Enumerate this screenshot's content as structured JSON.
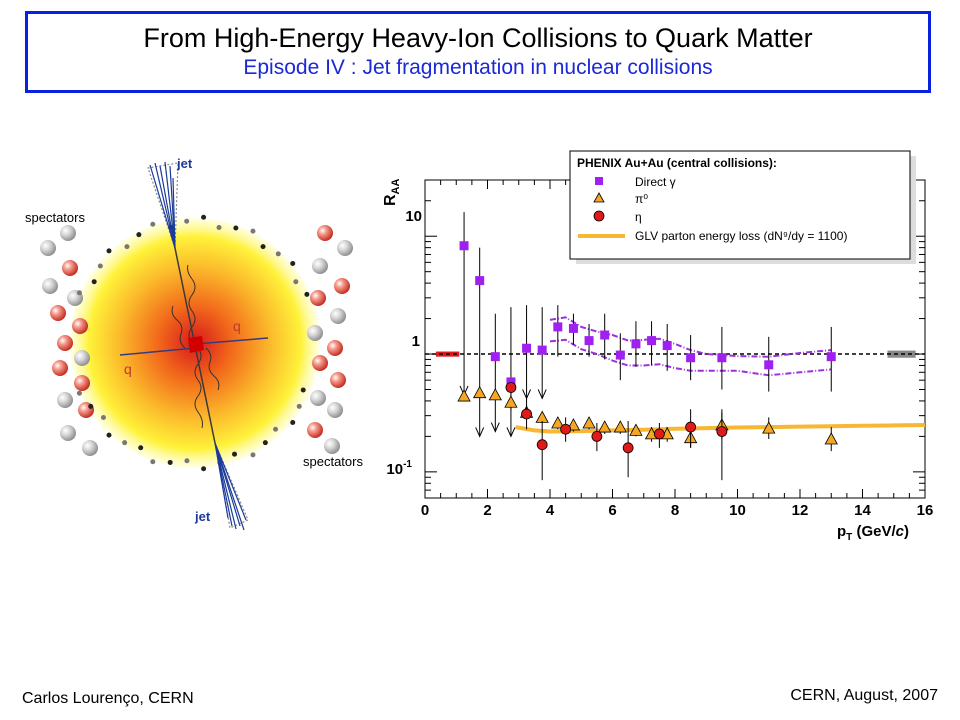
{
  "header": {
    "title": "From High-Energy Heavy-Ion Collisions to Quark Matter",
    "subtitle": "Episode IV : Jet fragmentation in nuclear collisions"
  },
  "diagram": {
    "jet_label": "jet",
    "spectators_label": "spectators",
    "quark_label": "q"
  },
  "footer": {
    "left": "Carlos Lourenço, CERN",
    "right": "CERN, August, 2007"
  },
  "colors": {
    "title_border": "#0a22e0",
    "subtitle": "#1b28d8",
    "direct_gamma": "#a020f0",
    "pi0": "#f5a623",
    "eta": "#e0191b",
    "glv": "#f7b733",
    "norm_red": "#e0191b",
    "norm_gray": "#888888"
  },
  "chart_data": {
    "type": "scatter",
    "ylabel_main": "R",
    "ylabel_sub": "AA",
    "xlabel_main": "p",
    "xlabel_sub": "T",
    "xlabel_unit_pre": " (GeV/",
    "xlabel_unit_it": "c",
    "xlabel_unit_post": ")",
    "xlim": [
      0,
      16
    ],
    "ylim": [
      0.06,
      30
    ],
    "y_scale": "log",
    "x_ticks": [
      0,
      2,
      4,
      6,
      8,
      10,
      12,
      14,
      16
    ],
    "y_tick_labels": {
      "ten": "10",
      "one": "1",
      "tenth_base": "10",
      "tenth_exp": "-1"
    },
    "legend": {
      "title": "PHENIX Au+Au (central collisions):",
      "position": "top-right",
      "entries": [
        "Direct γ",
        "π⁰",
        "η",
        "GLV parton energy loss (dN⁹/dy = 1100)"
      ]
    },
    "series": [
      {
        "name": "Direct γ",
        "marker": "square",
        "points": [
          {
            "x": 1.25,
            "y": 8.3,
            "hi": 16,
            "lo": 0.45,
            "arrow": true
          },
          {
            "x": 1.75,
            "y": 4.2,
            "hi": 8,
            "lo": 0.2,
            "arrow": true
          },
          {
            "x": 2.25,
            "y": 0.95,
            "hi": 2.2,
            "lo": 0.22,
            "arrow": true
          },
          {
            "x": 2.75,
            "y": 0.58,
            "hi": 2.5,
            "lo": 0.2,
            "arrow": true
          },
          {
            "x": 3.25,
            "y": 1.12,
            "hi": 2.6,
            "lo": 0.42,
            "arrow": true
          },
          {
            "x": 3.75,
            "y": 1.08,
            "hi": 2.5,
            "lo": 0.42,
            "arrow": true
          },
          {
            "x": 4.25,
            "y": 1.7,
            "hi": 2.6,
            "lo": 0.95
          },
          {
            "x": 4.75,
            "y": 1.65,
            "hi": 2.2,
            "lo": 1.2
          },
          {
            "x": 5.25,
            "y": 1.3,
            "hi": 1.8,
            "lo": 0.95
          },
          {
            "x": 5.75,
            "y": 1.45,
            "hi": 2.2,
            "lo": 0.9
          },
          {
            "x": 6.25,
            "y": 0.98,
            "hi": 1.5,
            "lo": 0.6
          },
          {
            "x": 6.75,
            "y": 1.22,
            "hi": 1.9,
            "lo": 0.78
          },
          {
            "x": 7.25,
            "y": 1.3,
            "hi": 1.9,
            "lo": 0.8
          },
          {
            "x": 7.75,
            "y": 1.18,
            "hi": 1.8,
            "lo": 0.72
          },
          {
            "x": 8.5,
            "y": 0.93,
            "hi": 1.45,
            "lo": 0.6
          },
          {
            "x": 9.5,
            "y": 0.93,
            "hi": 1.7,
            "lo": 0.5
          },
          {
            "x": 11.0,
            "y": 0.81,
            "hi": 1.4,
            "lo": 0.48
          },
          {
            "x": 13.0,
            "y": 0.95,
            "hi": 1.7,
            "lo": 0.48
          }
        ]
      },
      {
        "name": "π⁰",
        "marker": "triangle",
        "points": [
          {
            "x": 1.25,
            "y": 0.44,
            "hi": 0.48,
            "lo": 0.41
          },
          {
            "x": 1.75,
            "y": 0.47,
            "hi": 0.51,
            "lo": 0.44
          },
          {
            "x": 2.25,
            "y": 0.45,
            "hi": 0.49,
            "lo": 0.41
          },
          {
            "x": 2.75,
            "y": 0.39,
            "hi": 0.46,
            "lo": 0.33
          },
          {
            "x": 3.25,
            "y": 0.32,
            "hi": 0.37,
            "lo": 0.28
          },
          {
            "x": 3.75,
            "y": 0.29,
            "hi": 0.32,
            "lo": 0.26
          },
          {
            "x": 4.25,
            "y": 0.26,
            "hi": 0.29,
            "lo": 0.23
          },
          {
            "x": 4.75,
            "y": 0.25,
            "hi": 0.28,
            "lo": 0.22
          },
          {
            "x": 5.25,
            "y": 0.26,
            "hi": 0.29,
            "lo": 0.23
          },
          {
            "x": 5.75,
            "y": 0.24,
            "hi": 0.27,
            "lo": 0.21
          },
          {
            "x": 6.25,
            "y": 0.24,
            "hi": 0.27,
            "lo": 0.21
          },
          {
            "x": 6.75,
            "y": 0.225,
            "hi": 0.25,
            "lo": 0.2
          },
          {
            "x": 7.25,
            "y": 0.21,
            "hi": 0.24,
            "lo": 0.18
          },
          {
            "x": 7.75,
            "y": 0.21,
            "hi": 0.24,
            "lo": 0.18
          },
          {
            "x": 8.5,
            "y": 0.195,
            "hi": 0.24,
            "lo": 0.16
          },
          {
            "x": 9.5,
            "y": 0.25,
            "hi": 0.32,
            "lo": 0.19
          },
          {
            "x": 11.0,
            "y": 0.235,
            "hi": 0.29,
            "lo": 0.19
          },
          {
            "x": 13.0,
            "y": 0.19,
            "hi": 0.24,
            "lo": 0.15
          }
        ]
      },
      {
        "name": "η",
        "marker": "circle",
        "points": [
          {
            "x": 2.75,
            "y": 0.52,
            "hi": 0.58,
            "lo": 0.46
          },
          {
            "x": 3.25,
            "y": 0.31,
            "hi": 0.43,
            "lo": 0.23
          },
          {
            "x": 3.75,
            "y": 0.17,
            "hi": 0.27,
            "lo": 0.085
          },
          {
            "x": 4.5,
            "y": 0.23,
            "hi": 0.29,
            "lo": 0.18
          },
          {
            "x": 5.5,
            "y": 0.2,
            "hi": 0.26,
            "lo": 0.15
          },
          {
            "x": 6.5,
            "y": 0.16,
            "hi": 0.27,
            "lo": 0.09
          },
          {
            "x": 7.5,
            "y": 0.21,
            "hi": 0.26,
            "lo": 0.16
          },
          {
            "x": 8.5,
            "y": 0.24,
            "hi": 0.34,
            "lo": 0.16
          },
          {
            "x": 9.5,
            "y": 0.22,
            "hi": 0.34,
            "lo": 0.085
          }
        ]
      }
    ],
    "theory_band_upper": [
      [
        4.0,
        1.95
      ],
      [
        4.5,
        2.05
      ],
      [
        5.0,
        1.7
      ],
      [
        5.5,
        1.55
      ],
      [
        6.0,
        1.45
      ],
      [
        6.5,
        1.3
      ],
      [
        7.0,
        1.32
      ],
      [
        7.5,
        1.35
      ],
      [
        8.0,
        1.22
      ],
      [
        8.5,
        1.08
      ],
      [
        9.0,
        1.0
      ],
      [
        10.0,
        0.96
      ],
      [
        11.0,
        0.95
      ],
      [
        12.0,
        1.02
      ],
      [
        13.0,
        1.08
      ]
    ],
    "theory_band_lower": [
      [
        4.0,
        1.28
      ],
      [
        4.5,
        1.32
      ],
      [
        5.0,
        1.1
      ],
      [
        5.5,
        1.0
      ],
      [
        6.0,
        0.88
      ],
      [
        6.5,
        0.8
      ],
      [
        7.0,
        0.8
      ],
      [
        7.5,
        0.82
      ],
      [
        8.0,
        0.76
      ],
      [
        8.5,
        0.72
      ],
      [
        9.0,
        0.72
      ],
      [
        10.0,
        0.72
      ],
      [
        11.0,
        0.66
      ],
      [
        12.0,
        0.7
      ],
      [
        13.0,
        0.74
      ]
    ],
    "glv_curve": [
      [
        2.9,
        0.24
      ],
      [
        3.5,
        0.225
      ],
      [
        4.0,
        0.22
      ],
      [
        5.0,
        0.222
      ],
      [
        6.0,
        0.225
      ],
      [
        7.0,
        0.228
      ],
      [
        8.0,
        0.232
      ],
      [
        9.0,
        0.235
      ],
      [
        10.0,
        0.238
      ],
      [
        11.0,
        0.24
      ],
      [
        12.0,
        0.242
      ],
      [
        13.0,
        0.244
      ],
      [
        14.0,
        0.246
      ],
      [
        15.0,
        0.248
      ],
      [
        16.0,
        0.25
      ]
    ],
    "reference_line_y": 1,
    "norm_boxes": [
      {
        "x0": 0.35,
        "x1": 1.1,
        "y0": 0.95,
        "y1": 1.05,
        "color": "red"
      },
      {
        "x0": 14.8,
        "x1": 15.7,
        "y0": 0.93,
        "y1": 1.07,
        "color": "gray"
      }
    ]
  }
}
